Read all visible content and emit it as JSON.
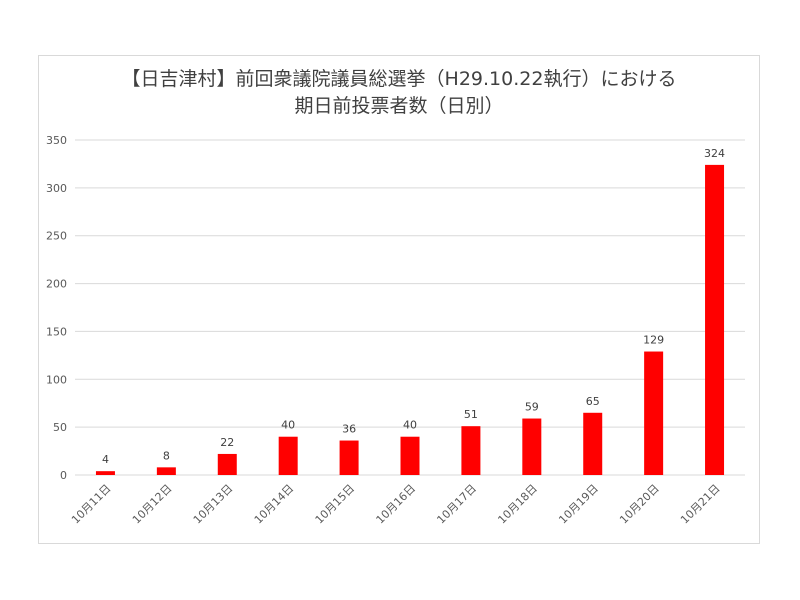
{
  "chart_data": {
    "type": "bar",
    "title": "【日吉津村】前回衆議院議員総選挙（H29.10.22執行）における",
    "subtitle": "期日前投票者数（日別）",
    "categories": [
      "10月11日",
      "10月12日",
      "10月13日",
      "10月14日",
      "10月15日",
      "10月16日",
      "10月17日",
      "10月18日",
      "10月19日",
      "10月20日",
      "10月21日"
    ],
    "values": [
      4,
      8,
      22,
      40,
      36,
      40,
      51,
      59,
      65,
      129,
      324
    ],
    "ylim": [
      0,
      350
    ],
    "yticks": [
      0,
      50,
      100,
      150,
      200,
      250,
      300,
      350
    ],
    "grid": true,
    "legend": "none",
    "bar_color": "#ff0000",
    "grid_color": "#d9d9d9"
  }
}
